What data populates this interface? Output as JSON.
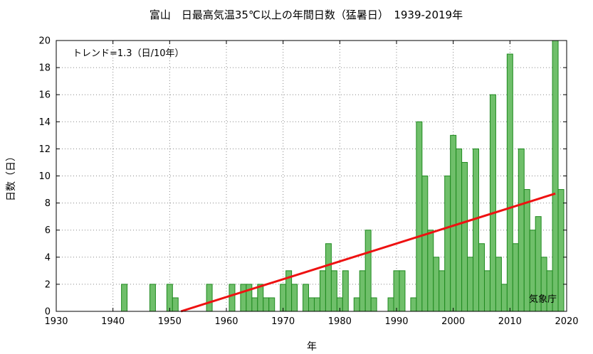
{
  "chart_data": {
    "type": "bar",
    "title": "富山　日最高気温35℃以上の年間日数（猛暑日）　1939-2019年",
    "xlabel": "年",
    "ylabel": "日数（日）",
    "xlim": [
      1930,
      2020
    ],
    "ylim": [
      0,
      20
    ],
    "xticks": [
      "1930",
      "1940",
      "1950",
      "1960",
      "1970",
      "1980",
      "1990",
      "2000",
      "2010",
      "2020"
    ],
    "yticks": [
      "0",
      "2",
      "4",
      "6",
      "8",
      "10",
      "12",
      "14",
      "16",
      "18",
      "20"
    ],
    "grid": true,
    "bar_color": "#6fbf6a",
    "bar_edge_color": "#1f8a1f",
    "trend_color": "#ee1111",
    "x": [
      1939,
      1940,
      1941,
      1942,
      1943,
      1944,
      1945,
      1946,
      1947,
      1948,
      1949,
      1950,
      1951,
      1952,
      1953,
      1954,
      1955,
      1956,
      1957,
      1958,
      1959,
      1960,
      1961,
      1962,
      1963,
      1964,
      1965,
      1966,
      1967,
      1968,
      1969,
      1970,
      1971,
      1972,
      1973,
      1974,
      1975,
      1976,
      1977,
      1978,
      1979,
      1980,
      1981,
      1982,
      1983,
      1984,
      1985,
      1986,
      1987,
      1988,
      1989,
      1990,
      1991,
      1992,
      1993,
      1994,
      1995,
      1996,
      1997,
      1998,
      1999,
      2000,
      2001,
      2002,
      2003,
      2004,
      2005,
      2006,
      2007,
      2008,
      2009,
      2010,
      2011,
      2012,
      2013,
      2014,
      2015,
      2016,
      2017,
      2018,
      2019
    ],
    "values": [
      0,
      0,
      0,
      2,
      0,
      0,
      0,
      0,
      2,
      0,
      0,
      2,
      1,
      0,
      0,
      0,
      0,
      0,
      2,
      0,
      0,
      0,
      2,
      0,
      2,
      2,
      1,
      2,
      1,
      1,
      0,
      2,
      3,
      2,
      0,
      2,
      1,
      1,
      3,
      5,
      3,
      1,
      3,
      0,
      1,
      3,
      6,
      1,
      0,
      0,
      1,
      3,
      3,
      0,
      1,
      14,
      10,
      6,
      4,
      3,
      10,
      13,
      12,
      11,
      4,
      12,
      5,
      3,
      16,
      4,
      2,
      19,
      5,
      12,
      9,
      6,
      7,
      4,
      3,
      20,
      9
    ],
    "trend": {
      "x": [
        1952,
        2018
      ],
      "y": [
        0,
        8.7
      ]
    },
    "annotation_trend": "トレンド=1.3（日/10年）",
    "source": "気象庁"
  }
}
